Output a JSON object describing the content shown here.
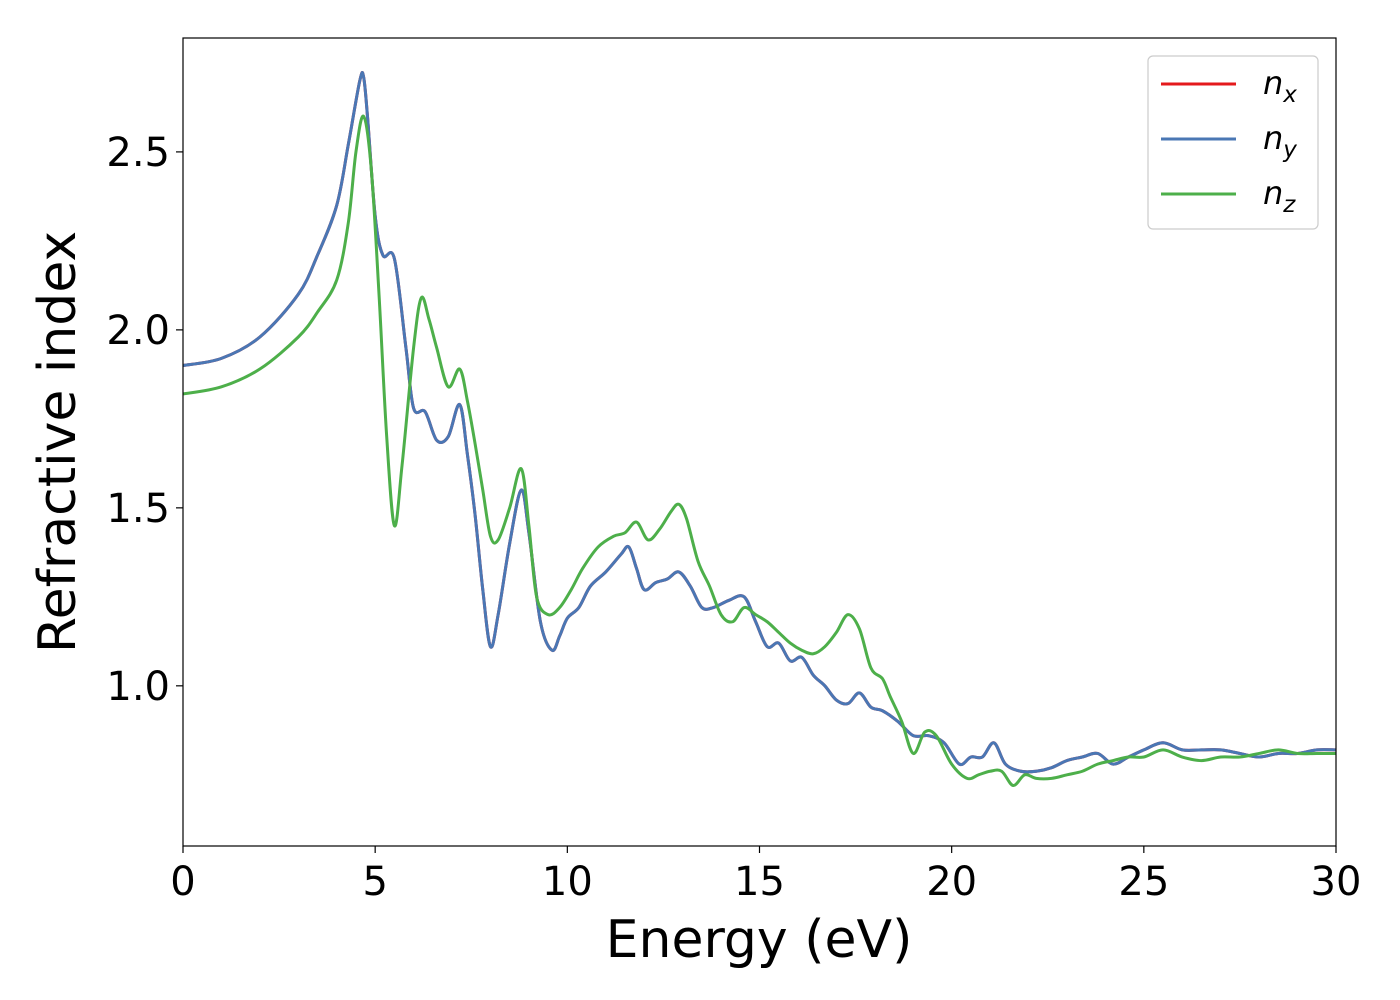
{
  "chart_data": {
    "type": "line",
    "xlabel": "Energy (eV)",
    "ylabel": "Refractive index",
    "xlim": [
      0,
      30
    ],
    "ylim": [
      0.55,
      2.82
    ],
    "xticks": [
      "0",
      "5",
      "10",
      "15",
      "20",
      "25",
      "30"
    ],
    "yticks": [
      "1.0",
      "1.5",
      "2.0",
      "2.5"
    ],
    "grid": false,
    "legend_position": "top-right",
    "series": [
      {
        "name": "n",
        "subscript": "x",
        "color": "#e41a1c",
        "x": [
          0,
          1,
          2,
          3,
          3.5,
          4,
          4.3,
          4.6,
          4.7,
          4.8,
          5.0,
          5.2,
          5.5,
          5.8,
          6.0,
          6.3,
          6.6,
          6.9,
          7.2,
          7.4,
          7.6,
          7.8,
          8.0,
          8.2,
          8.5,
          8.8,
          9.0,
          9.3,
          9.6,
          9.8,
          10.0,
          10.3,
          10.6,
          11.0,
          11.4,
          11.6,
          11.8,
          12.0,
          12.3,
          12.6,
          12.9,
          13.2,
          13.5,
          13.8,
          14.2,
          14.6,
          14.9,
          15.2,
          15.5,
          15.8,
          16.1,
          16.4,
          16.7,
          17.0,
          17.3,
          17.6,
          17.9,
          18.2,
          18.6,
          19.0,
          19.4,
          19.8,
          20.2,
          20.5,
          20.8,
          21.1,
          21.4,
          21.8,
          22.2,
          22.6,
          23.0,
          23.4,
          23.8,
          24.2,
          24.6,
          25.0,
          25.5,
          26.0,
          26.5,
          27.0,
          27.5,
          28.0,
          28.5,
          29.0,
          29.5,
          30.0
        ],
        "y": [
          1.9,
          1.92,
          1.98,
          2.1,
          2.21,
          2.35,
          2.52,
          2.7,
          2.71,
          2.6,
          2.32,
          2.21,
          2.2,
          1.95,
          1.78,
          1.77,
          1.69,
          1.7,
          1.79,
          1.65,
          1.48,
          1.27,
          1.11,
          1.2,
          1.4,
          1.55,
          1.43,
          1.18,
          1.1,
          1.14,
          1.19,
          1.22,
          1.28,
          1.32,
          1.37,
          1.39,
          1.33,
          1.27,
          1.29,
          1.3,
          1.32,
          1.28,
          1.22,
          1.22,
          1.24,
          1.25,
          1.18,
          1.11,
          1.12,
          1.07,
          1.08,
          1.03,
          1.0,
          0.96,
          0.95,
          0.98,
          0.94,
          0.93,
          0.9,
          0.86,
          0.86,
          0.84,
          0.78,
          0.8,
          0.8,
          0.84,
          0.78,
          0.76,
          0.76,
          0.77,
          0.79,
          0.8,
          0.81,
          0.78,
          0.8,
          0.82,
          0.84,
          0.82,
          0.82,
          0.82,
          0.81,
          0.8,
          0.81,
          0.81,
          0.82,
          0.82
        ]
      },
      {
        "name": "n",
        "subscript": "y",
        "color": "#4a77b4",
        "x": [
          0,
          1,
          2,
          3,
          3.5,
          4,
          4.3,
          4.6,
          4.7,
          4.8,
          5.0,
          5.2,
          5.5,
          5.8,
          6.0,
          6.3,
          6.6,
          6.9,
          7.2,
          7.4,
          7.6,
          7.8,
          8.0,
          8.2,
          8.5,
          8.8,
          9.0,
          9.3,
          9.6,
          9.8,
          10.0,
          10.3,
          10.6,
          11.0,
          11.4,
          11.6,
          11.8,
          12.0,
          12.3,
          12.6,
          12.9,
          13.2,
          13.5,
          13.8,
          14.2,
          14.6,
          14.9,
          15.2,
          15.5,
          15.8,
          16.1,
          16.4,
          16.7,
          17.0,
          17.3,
          17.6,
          17.9,
          18.2,
          18.6,
          19.0,
          19.4,
          19.8,
          20.2,
          20.5,
          20.8,
          21.1,
          21.4,
          21.8,
          22.2,
          22.6,
          23.0,
          23.4,
          23.8,
          24.2,
          24.6,
          25.0,
          25.5,
          26.0,
          26.5,
          27.0,
          27.5,
          28.0,
          28.5,
          29.0,
          29.5,
          30.0
        ],
        "y": [
          1.9,
          1.92,
          1.98,
          2.1,
          2.21,
          2.35,
          2.52,
          2.7,
          2.71,
          2.6,
          2.32,
          2.21,
          2.2,
          1.95,
          1.78,
          1.77,
          1.69,
          1.7,
          1.79,
          1.65,
          1.48,
          1.27,
          1.11,
          1.2,
          1.4,
          1.55,
          1.43,
          1.18,
          1.1,
          1.14,
          1.19,
          1.22,
          1.28,
          1.32,
          1.37,
          1.39,
          1.33,
          1.27,
          1.29,
          1.3,
          1.32,
          1.28,
          1.22,
          1.22,
          1.24,
          1.25,
          1.18,
          1.11,
          1.12,
          1.07,
          1.08,
          1.03,
          1.0,
          0.96,
          0.95,
          0.98,
          0.94,
          0.93,
          0.9,
          0.86,
          0.86,
          0.84,
          0.78,
          0.8,
          0.8,
          0.84,
          0.78,
          0.76,
          0.76,
          0.77,
          0.79,
          0.8,
          0.81,
          0.78,
          0.8,
          0.82,
          0.84,
          0.82,
          0.82,
          0.82,
          0.81,
          0.8,
          0.81,
          0.81,
          0.82,
          0.82
        ]
      },
      {
        "name": "n",
        "subscript": "z",
        "color": "#4daf4a",
        "x": [
          0,
          1,
          2,
          3,
          3.5,
          4,
          4.3,
          4.5,
          4.7,
          4.9,
          5.1,
          5.3,
          5.5,
          5.7,
          6.0,
          6.2,
          6.4,
          6.6,
          6.9,
          7.2,
          7.4,
          7.6,
          7.8,
          8.0,
          8.2,
          8.5,
          8.8,
          9.0,
          9.2,
          9.5,
          9.8,
          10.1,
          10.4,
          10.8,
          11.2,
          11.5,
          11.8,
          12.1,
          12.4,
          12.7,
          12.9,
          13.1,
          13.4,
          13.7,
          14.0,
          14.3,
          14.6,
          14.9,
          15.2,
          15.5,
          15.8,
          16.1,
          16.4,
          16.7,
          17.0,
          17.3,
          17.6,
          17.9,
          18.2,
          18.4,
          18.7,
          19.0,
          19.3,
          19.6,
          20.0,
          20.4,
          20.7,
          21.0,
          21.3,
          21.6,
          21.9,
          22.2,
          22.6,
          23.0,
          23.4,
          23.8,
          24.2,
          24.6,
          25.0,
          25.5,
          26.0,
          26.5,
          27.0,
          27.5,
          28.0,
          28.5,
          29.0,
          29.5,
          30.0
        ],
        "y": [
          1.82,
          1.84,
          1.89,
          1.98,
          2.05,
          2.14,
          2.3,
          2.5,
          2.6,
          2.45,
          2.1,
          1.7,
          1.45,
          1.62,
          1.95,
          2.09,
          2.03,
          1.95,
          1.84,
          1.89,
          1.8,
          1.68,
          1.55,
          1.42,
          1.41,
          1.5,
          1.61,
          1.45,
          1.25,
          1.2,
          1.22,
          1.27,
          1.33,
          1.39,
          1.42,
          1.43,
          1.46,
          1.41,
          1.44,
          1.49,
          1.51,
          1.47,
          1.35,
          1.28,
          1.2,
          1.18,
          1.22,
          1.2,
          1.18,
          1.15,
          1.12,
          1.1,
          1.09,
          1.11,
          1.15,
          1.2,
          1.16,
          1.05,
          1.02,
          0.97,
          0.9,
          0.81,
          0.87,
          0.86,
          0.78,
          0.74,
          0.75,
          0.76,
          0.76,
          0.72,
          0.75,
          0.74,
          0.74,
          0.75,
          0.76,
          0.78,
          0.79,
          0.8,
          0.8,
          0.82,
          0.8,
          0.79,
          0.8,
          0.8,
          0.81,
          0.82,
          0.81,
          0.81,
          0.81
        ]
      }
    ]
  }
}
